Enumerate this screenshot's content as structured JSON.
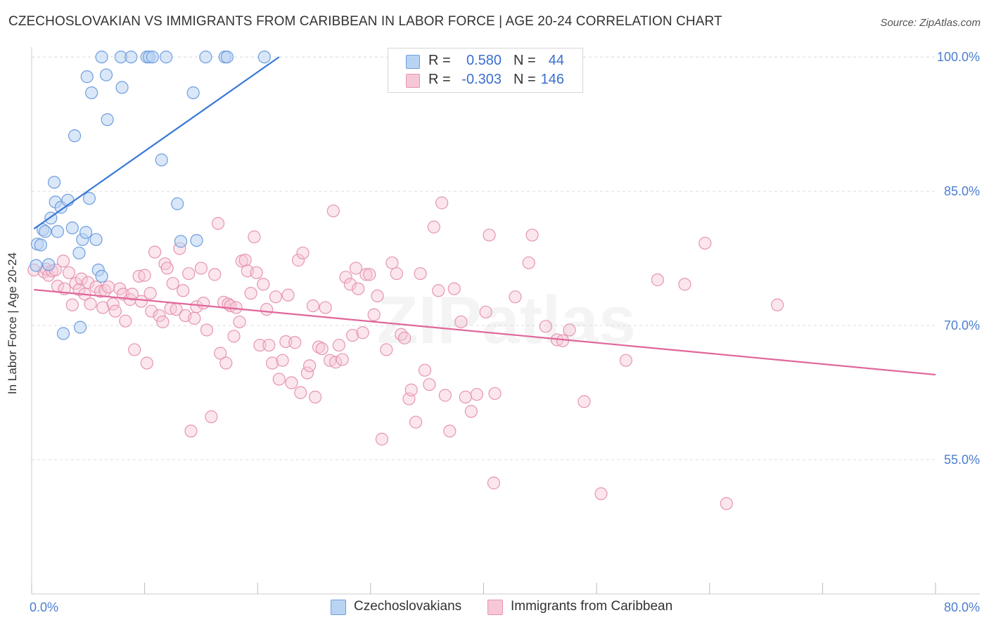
{
  "title": "CZECHOSLOVAKIAN VS IMMIGRANTS FROM CARIBBEAN IN LABOR FORCE | AGE 20-24 CORRELATION CHART",
  "source": "Source: ZipAtlas.com",
  "colors": {
    "blue_fill": "#b9d3f3",
    "blue_stroke": "#6f9edf",
    "blue_line": "#3a78d6",
    "pink_fill": "#f6c7d6",
    "pink_stroke": "#e695b1",
    "pink_line": "#e0669a",
    "tick_text": "#4a7fd0",
    "grid": "#dddddd"
  },
  "legend": {
    "series1": {
      "r_label": "R =",
      "r_value": "0.580",
      "n_label": "N =",
      "n_value": "44"
    },
    "series2": {
      "r_label": "R =",
      "r_value": "-0.303",
      "n_label": "N =",
      "n_value": "146"
    }
  },
  "bottom_legend": {
    "series1": "Czechoslovakians",
    "series2": "Immigrants from Caribbean"
  },
  "watermark": "ZIPatlas",
  "chart_data": {
    "type": "scatter",
    "title": "CZECHOSLOVAKIAN VS IMMIGRANTS FROM CARIBBEAN IN LABOR FORCE | AGE 20-24 CORRELATION CHART",
    "xlabel": "",
    "ylabel": "In Labor Force | Age 20-24",
    "xlim": [
      0,
      80
    ],
    "ylim": [
      40,
      101.5
    ],
    "x_tick_labels": [
      "0.0%",
      "80.0%"
    ],
    "y_ticks": [
      55,
      70,
      85,
      100
    ],
    "y_tick_labels": [
      "55.0%",
      "70.0%",
      "85.0%",
      "100.0%"
    ],
    "grid": true,
    "series": [
      {
        "name": "Czechoslovakians",
        "r": 0.58,
        "n": 44,
        "trend": {
          "x": [
            0.2,
            21.9
          ],
          "y": [
            80.8,
            100.0
          ]
        },
        "points": [
          [
            0.4,
            76.7
          ],
          [
            0.5,
            79.1
          ],
          [
            0.8,
            79.0
          ],
          [
            1.0,
            80.7
          ],
          [
            1.2,
            80.5
          ],
          [
            1.5,
            76.8
          ],
          [
            1.7,
            82.0
          ],
          [
            2.0,
            86.0
          ],
          [
            2.1,
            83.8
          ],
          [
            2.3,
            80.5
          ],
          [
            2.6,
            83.2
          ],
          [
            2.8,
            69.1
          ],
          [
            3.2,
            84.0
          ],
          [
            3.6,
            80.9
          ],
          [
            3.8,
            91.2
          ],
          [
            4.2,
            78.1
          ],
          [
            4.3,
            69.8
          ],
          [
            4.5,
            79.6
          ],
          [
            4.8,
            80.4
          ],
          [
            4.9,
            97.8
          ],
          [
            5.1,
            84.2
          ],
          [
            5.3,
            96.0
          ],
          [
            5.7,
            79.6
          ],
          [
            5.9,
            76.2
          ],
          [
            6.2,
            75.5
          ],
          [
            6.2,
            100.0
          ],
          [
            6.6,
            98.0
          ],
          [
            6.7,
            93.0
          ],
          [
            7.9,
            100.0
          ],
          [
            8.0,
            96.6
          ],
          [
            8.8,
            100.0
          ],
          [
            10.2,
            100.0
          ],
          [
            10.4,
            100.0
          ],
          [
            10.7,
            100.0
          ],
          [
            11.5,
            88.5
          ],
          [
            11.9,
            100.0
          ],
          [
            12.9,
            83.6
          ],
          [
            13.2,
            79.4
          ],
          [
            14.3,
            96.0
          ],
          [
            14.6,
            79.5
          ],
          [
            15.4,
            100.0
          ],
          [
            17.1,
            100.0
          ],
          [
            17.3,
            100.0
          ],
          [
            20.6,
            100.0
          ]
        ]
      },
      {
        "name": "Immigrants from Caribbean",
        "r": -0.303,
        "n": 146,
        "trend": {
          "x": [
            0.2,
            80.0
          ],
          "y": [
            74.0,
            64.5
          ]
        },
        "points": [
          [
            0.2,
            76.2
          ],
          [
            1.1,
            76.0
          ],
          [
            1.3,
            76.3
          ],
          [
            1.5,
            75.6
          ],
          [
            1.8,
            76.1
          ],
          [
            2.1,
            76.2
          ],
          [
            2.3,
            74.4
          ],
          [
            2.8,
            77.2
          ],
          [
            2.9,
            74.1
          ],
          [
            3.3,
            75.9
          ],
          [
            3.6,
            72.3
          ],
          [
            3.9,
            74.7
          ],
          [
            4.2,
            74.0
          ],
          [
            4.4,
            75.2
          ],
          [
            4.7,
            73.5
          ],
          [
            5.0,
            74.8
          ],
          [
            5.2,
            72.4
          ],
          [
            5.7,
            74.3
          ],
          [
            6.1,
            73.8
          ],
          [
            6.3,
            72.0
          ],
          [
            6.5,
            73.9
          ],
          [
            6.8,
            74.3
          ],
          [
            7.2,
            72.4
          ],
          [
            7.4,
            71.6
          ],
          [
            7.8,
            74.1
          ],
          [
            8.1,
            73.5
          ],
          [
            8.3,
            70.5
          ],
          [
            8.7,
            72.9
          ],
          [
            8.9,
            73.5
          ],
          [
            9.1,
            67.3
          ],
          [
            9.5,
            75.5
          ],
          [
            9.7,
            72.7
          ],
          [
            10.0,
            75.6
          ],
          [
            10.2,
            65.8
          ],
          [
            10.5,
            73.6
          ],
          [
            10.6,
            71.6
          ],
          [
            10.9,
            78.2
          ],
          [
            11.3,
            71.1
          ],
          [
            11.6,
            70.4
          ],
          [
            11.8,
            76.9
          ],
          [
            12.0,
            76.4
          ],
          [
            12.3,
            71.9
          ],
          [
            12.5,
            74.7
          ],
          [
            12.8,
            71.8
          ],
          [
            13.1,
            78.6
          ],
          [
            13.4,
            73.9
          ],
          [
            13.6,
            71.1
          ],
          [
            13.9,
            75.8
          ],
          [
            14.1,
            58.2
          ],
          [
            14.4,
            70.8
          ],
          [
            14.6,
            72.1
          ],
          [
            15.0,
            76.4
          ],
          [
            15.2,
            72.5
          ],
          [
            15.5,
            69.5
          ],
          [
            15.9,
            59.8
          ],
          [
            16.2,
            75.7
          ],
          [
            16.5,
            81.4
          ],
          [
            16.7,
            66.9
          ],
          [
            17.0,
            72.6
          ],
          [
            17.2,
            65.8
          ],
          [
            17.4,
            72.4
          ],
          [
            17.6,
            72.2
          ],
          [
            17.9,
            68.8
          ],
          [
            18.1,
            72.0
          ],
          [
            18.4,
            70.4
          ],
          [
            18.6,
            77.2
          ],
          [
            18.9,
            77.3
          ],
          [
            19.1,
            76.1
          ],
          [
            19.4,
            73.6
          ],
          [
            19.7,
            79.9
          ],
          [
            19.9,
            75.9
          ],
          [
            20.2,
            67.8
          ],
          [
            20.5,
            74.6
          ],
          [
            20.8,
            71.8
          ],
          [
            21.0,
            67.8
          ],
          [
            21.3,
            65.8
          ],
          [
            21.6,
            73.2
          ],
          [
            21.9,
            64.0
          ],
          [
            22.2,
            66.1
          ],
          [
            22.5,
            68.2
          ],
          [
            22.7,
            73.4
          ],
          [
            23.0,
            63.6
          ],
          [
            23.3,
            68.1
          ],
          [
            23.6,
            77.3
          ],
          [
            23.8,
            62.5
          ],
          [
            24.0,
            78.1
          ],
          [
            24.4,
            64.7
          ],
          [
            24.6,
            65.5
          ],
          [
            24.9,
            72.2
          ],
          [
            25.1,
            62.0
          ],
          [
            25.4,
            67.6
          ],
          [
            25.7,
            67.4
          ],
          [
            26.0,
            72.0
          ],
          [
            26.4,
            66.1
          ],
          [
            26.7,
            82.8
          ],
          [
            26.9,
            65.9
          ],
          [
            27.2,
            67.8
          ],
          [
            27.5,
            66.2
          ],
          [
            27.8,
            75.4
          ],
          [
            28.2,
            74.6
          ],
          [
            28.4,
            68.9
          ],
          [
            28.7,
            76.4
          ],
          [
            28.9,
            74.1
          ],
          [
            29.3,
            69.2
          ],
          [
            29.6,
            75.7
          ],
          [
            29.9,
            75.7
          ],
          [
            30.3,
            71.2
          ],
          [
            30.6,
            73.3
          ],
          [
            31.0,
            57.3
          ],
          [
            31.4,
            67.3
          ],
          [
            31.9,
            77.0
          ],
          [
            32.3,
            75.8
          ],
          [
            32.7,
            69.0
          ],
          [
            33.0,
            68.6
          ],
          [
            33.4,
            61.8
          ],
          [
            33.6,
            62.8
          ],
          [
            34.0,
            59.2
          ],
          [
            34.4,
            75.8
          ],
          [
            34.8,
            65.0
          ],
          [
            35.2,
            63.4
          ],
          [
            35.6,
            81.0
          ],
          [
            36.0,
            73.9
          ],
          [
            36.3,
            83.7
          ],
          [
            36.6,
            62.2
          ],
          [
            37.0,
            58.2
          ],
          [
            37.4,
            74.1
          ],
          [
            38.0,
            70.4
          ],
          [
            38.4,
            62.0
          ],
          [
            38.9,
            60.4
          ],
          [
            39.4,
            62.3
          ],
          [
            40.2,
            71.5
          ],
          [
            40.5,
            80.1
          ],
          [
            40.9,
            52.4
          ],
          [
            41.0,
            62.4
          ],
          [
            42.8,
            73.2
          ],
          [
            44.0,
            77.0
          ],
          [
            44.3,
            80.1
          ],
          [
            45.5,
            69.9
          ],
          [
            46.5,
            68.4
          ],
          [
            47.0,
            68.3
          ],
          [
            47.6,
            69.5
          ],
          [
            48.9,
            61.5
          ],
          [
            50.4,
            51.2
          ],
          [
            52.6,
            66.1
          ],
          [
            55.4,
            75.1
          ],
          [
            57.8,
            74.6
          ],
          [
            59.6,
            79.2
          ],
          [
            61.5,
            50.1
          ],
          [
            66.0,
            72.3
          ]
        ]
      }
    ]
  }
}
